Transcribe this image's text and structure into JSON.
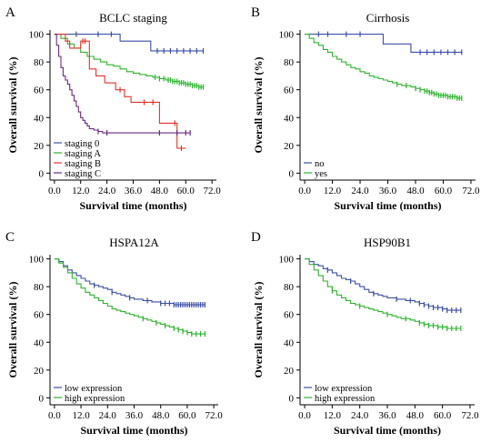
{
  "chart_data": [
    {
      "type": "line",
      "letter": "A",
      "title": "BCLC staging",
      "xlabel": "Survival time (months)",
      "ylabel": "Overall survival (%)",
      "xticks": [
        "0.0",
        "12.0",
        "24.0",
        "36.0",
        "48.0",
        "60.0",
        "72.0"
      ],
      "yticks": [
        "0",
        "20",
        "40",
        "60",
        "80",
        "100"
      ],
      "xlim": [
        -2,
        74
      ],
      "ylim": [
        -5,
        103
      ],
      "grid": false,
      "legend_position": "bottom-left",
      "series": [
        {
          "name": "staging 0",
          "color": "#3b4fa8",
          "x": [
            0,
            30,
            44,
            68
          ],
          "y": [
            100,
            95,
            88,
            88
          ],
          "censored_x": [
            10,
            20,
            26,
            47,
            50,
            53,
            56,
            59,
            62,
            65,
            68
          ]
        },
        {
          "name": "staging A",
          "color": "#2db52d",
          "x": [
            0,
            3,
            6,
            9,
            12,
            15,
            18,
            21,
            24,
            27,
            30,
            33,
            36,
            39,
            42,
            45,
            48,
            51,
            54,
            57,
            60,
            63,
            66,
            68
          ],
          "y": [
            100,
            97,
            93,
            90,
            87,
            84,
            82,
            80,
            78,
            77,
            75,
            73,
            72,
            71,
            70,
            69,
            68,
            67,
            66,
            65,
            64,
            63,
            62,
            62
          ],
          "censored_x": [
            46,
            48,
            50,
            52,
            53,
            54,
            55,
            56,
            57,
            58,
            59,
            60,
            61,
            62,
            63,
            64,
            65,
            66,
            67,
            68
          ]
        },
        {
          "name": "staging B",
          "color": "#e8322a",
          "x": [
            0,
            5,
            7,
            12,
            16,
            19,
            23,
            28,
            32,
            35,
            43,
            48,
            53,
            56,
            60
          ],
          "y": [
            100,
            95,
            90,
            95,
            75,
            70,
            65,
            60,
            55,
            51,
            51,
            36,
            36,
            18,
            18
          ],
          "censored_x": [
            13,
            14,
            30,
            41,
            45,
            55,
            58
          ]
        },
        {
          "name": "staging C",
          "color": "#6a2a82",
          "x": [
            0,
            1,
            2,
            3,
            4,
            5,
            6,
            7,
            8,
            9,
            10,
            11,
            12,
            13,
            14,
            15,
            16,
            18,
            20,
            22,
            25,
            28,
            32,
            40,
            52,
            62
          ],
          "y": [
            100,
            92,
            84,
            76,
            70,
            67,
            64,
            60,
            56,
            52,
            48,
            44,
            40,
            38,
            36,
            34,
            32,
            31,
            30,
            29,
            29,
            29,
            29,
            29,
            29,
            29
          ],
          "censored_x": [
            20,
            24,
            48,
            56,
            60,
            62
          ]
        }
      ]
    },
    {
      "type": "line",
      "letter": "B",
      "title": "Cirrhosis",
      "xlabel": "Survival time (months)",
      "ylabel": "Overall survival (%)",
      "xticks": [
        "0.0",
        "12.0",
        "24.0",
        "36.0",
        "48.0",
        "60.0",
        "72.0"
      ],
      "yticks": [
        "0",
        "20",
        "40",
        "60",
        "80",
        "100"
      ],
      "xlim": [
        -2,
        74
      ],
      "ylim": [
        -5,
        103
      ],
      "grid": false,
      "legend_position": "bottom-left",
      "series": [
        {
          "name": "no",
          "color": "#3b4fa8",
          "x": [
            0,
            34,
            46,
            68
          ],
          "y": [
            100,
            93,
            87,
            87
          ],
          "censored_x": [
            6,
            10,
            18,
            24,
            50,
            53,
            56,
            59,
            62,
            65,
            68
          ]
        },
        {
          "name": "yes",
          "color": "#2db52d",
          "x": [
            0,
            2,
            4,
            6,
            8,
            10,
            12,
            14,
            16,
            18,
            20,
            22,
            24,
            26,
            28,
            30,
            32,
            34,
            36,
            38,
            40,
            42,
            44,
            46,
            48,
            50,
            52,
            54,
            56,
            58,
            60,
            62,
            64,
            66,
            68
          ],
          "y": [
            100,
            97,
            94,
            92,
            89,
            87,
            84,
            82,
            80,
            78,
            76,
            75,
            73,
            72,
            70,
            69,
            68,
            67,
            66,
            65,
            64,
            63,
            63,
            62,
            61,
            60,
            59,
            58,
            57,
            56,
            56,
            55,
            55,
            54,
            54
          ],
          "censored_x": [
            40,
            44,
            48,
            50,
            52,
            53,
            54,
            55,
            56,
            57,
            58,
            59,
            60,
            61,
            62,
            63,
            64,
            65,
            66,
            67,
            68
          ]
        }
      ]
    },
    {
      "type": "line",
      "letter": "C",
      "title": "HSPA12A",
      "xlabel": "Survival time (months)",
      "ylabel": "Overall survival (%)",
      "xticks": [
        "0.0",
        "12.0",
        "24.0",
        "36.0",
        "48.0",
        "60.0",
        "72.0"
      ],
      "yticks": [
        "0",
        "20",
        "40",
        "60",
        "80",
        "100"
      ],
      "xlim": [
        -2,
        74
      ],
      "ylim": [
        -5,
        103
      ],
      "grid": false,
      "legend_position": "bottom-left",
      "series": [
        {
          "name": "low expression",
          "color": "#3b4fa8",
          "x": [
            0,
            2,
            4,
            6,
            8,
            10,
            12,
            14,
            16,
            18,
            20,
            22,
            24,
            26,
            28,
            30,
            32,
            34,
            36,
            38,
            40,
            42,
            44,
            46,
            48,
            50,
            52,
            54,
            56,
            58,
            60,
            62,
            64,
            66,
            68
          ],
          "y": [
            100,
            98,
            95,
            92,
            90,
            88,
            86,
            84,
            82,
            81,
            80,
            79,
            78,
            76,
            75,
            74,
            73,
            72,
            71,
            71,
            70,
            70,
            69,
            69,
            68,
            68,
            68,
            67,
            67,
            67,
            67,
            67,
            67,
            67,
            67
          ],
          "censored_x": [
            18,
            26,
            34,
            42,
            48,
            50,
            52,
            54,
            55,
            56,
            57,
            58,
            59,
            60,
            61,
            62,
            63,
            64,
            65,
            66,
            67,
            68
          ]
        },
        {
          "name": "high expression",
          "color": "#2db52d",
          "x": [
            0,
            2,
            4,
            6,
            8,
            10,
            12,
            14,
            16,
            18,
            20,
            22,
            24,
            26,
            28,
            30,
            32,
            34,
            36,
            38,
            40,
            42,
            44,
            46,
            48,
            50,
            52,
            54,
            56,
            58,
            60,
            62,
            64,
            66,
            68
          ],
          "y": [
            100,
            97,
            94,
            90,
            86,
            82,
            79,
            76,
            74,
            72,
            70,
            68,
            66,
            64,
            63,
            62,
            61,
            60,
            59,
            58,
            57,
            56,
            55,
            54,
            53,
            52,
            51,
            50,
            49,
            48,
            47,
            46,
            46,
            46,
            46
          ],
          "censored_x": [
            40,
            46,
            50,
            54,
            56,
            58,
            60,
            62,
            64,
            66,
            68
          ]
        }
      ]
    },
    {
      "type": "line",
      "letter": "D",
      "title": "HSP90B1",
      "xlabel": "Survival time (months)",
      "ylabel": "Overall survival (%)",
      "xticks": [
        "0.0",
        "12.0",
        "24.0",
        "36.0",
        "48.0",
        "60.0",
        "72.0"
      ],
      "yticks": [
        "0",
        "20",
        "40",
        "60",
        "80",
        "100"
      ],
      "xlim": [
        -2,
        74
      ],
      "ylim": [
        -5,
        103
      ],
      "grid": false,
      "legend_position": "bottom-left",
      "series": [
        {
          "name": "low expression",
          "color": "#3b4fa8",
          "x": [
            0,
            2,
            4,
            6,
            8,
            10,
            12,
            14,
            16,
            18,
            20,
            22,
            24,
            26,
            28,
            30,
            32,
            34,
            36,
            38,
            40,
            42,
            44,
            46,
            48,
            50,
            52,
            54,
            56,
            58,
            60,
            62,
            64,
            66,
            68
          ],
          "y": [
            100,
            98,
            96,
            95,
            93,
            92,
            90,
            88,
            86,
            85,
            84,
            82,
            80,
            78,
            76,
            75,
            74,
            73,
            72,
            72,
            71,
            71,
            70,
            70,
            69,
            68,
            67,
            66,
            65,
            65,
            64,
            63,
            63,
            63,
            63
          ],
          "censored_x": [
            10,
            20,
            30,
            40,
            46,
            50,
            52,
            54,
            56,
            58,
            60,
            62,
            64,
            66,
            68
          ]
        },
        {
          "name": "high expression",
          "color": "#2db52d",
          "x": [
            0,
            2,
            4,
            6,
            8,
            10,
            12,
            14,
            16,
            18,
            20,
            22,
            24,
            26,
            28,
            30,
            32,
            34,
            36,
            38,
            40,
            42,
            44,
            46,
            48,
            50,
            52,
            54,
            56,
            58,
            60,
            62,
            64,
            66,
            68
          ],
          "y": [
            100,
            96,
            92,
            88,
            84,
            80,
            77,
            74,
            72,
            70,
            68,
            67,
            66,
            65,
            64,
            63,
            62,
            61,
            60,
            59,
            58,
            57,
            57,
            56,
            55,
            54,
            53,
            52,
            52,
            51,
            51,
            50,
            50,
            50,
            50
          ],
          "censored_x": [
            12,
            24,
            36,
            44,
            50,
            52,
            54,
            56,
            58,
            60,
            62,
            64,
            66,
            68
          ]
        }
      ]
    }
  ]
}
